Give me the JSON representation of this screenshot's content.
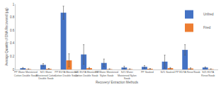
{
  "chart_data": {
    "type": "bar",
    "x_label": "Recovery/ Extraction Methods",
    "y_label": "Average Quantity of DNA Recovered (µg)",
    "categories": [
      "PP Water Moistened Cotton Double Swab",
      "SZ1 Water Moistened Cotton Double Swab",
      "PP EDTA Moistened Cotton Double Swab",
      "SZ1 EDTA Moistened Cotton Double Swab",
      "PP Water Moistened Nylon Swab",
      "SZ1 Water Moistened Nylon Swab",
      "PP Soaked",
      "SZ1 Soaked",
      "PP EDTA Rinse/Swab",
      "SZ1 EDTA Rinse/Swab"
    ],
    "series": [
      {
        "name": "Unfired",
        "color": "#4472c4",
        "values": [
          0.02,
          0.07,
          0.87,
          0.23,
          0.1,
          0.03,
          0.04,
          0.12,
          0.3,
          0.03
        ],
        "errors": [
          0.01,
          0.02,
          0.1,
          0.15,
          0.06,
          0.02,
          0.02,
          0.1,
          0.08,
          0.01
        ]
      },
      {
        "name": "Fired",
        "color": "#ed7d31",
        "values": [
          0.005,
          0.01,
          0.14,
          0.02,
          0.005,
          0.005,
          0.01,
          0.02,
          0.015,
          0.005
        ],
        "errors": [
          0.005,
          0.005,
          0.1,
          0.01,
          0.005,
          0.005,
          0.005,
          0.01,
          0.01,
          0.005
        ]
      }
    ],
    "ylim": [
      0,
      1
    ],
    "yticks": [
      0,
      0.2,
      0.4,
      0.6,
      0.8,
      1
    ],
    "grid": false,
    "legend": "top-right"
  }
}
